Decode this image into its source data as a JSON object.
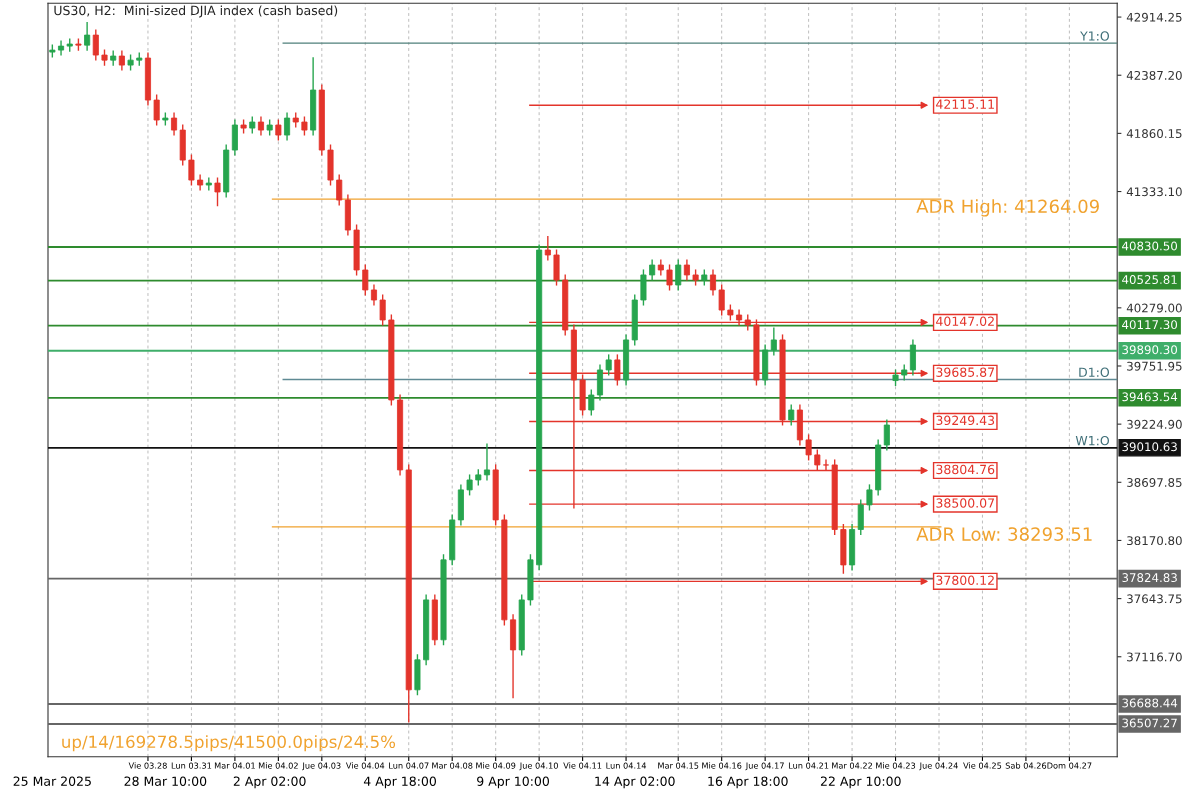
{
  "chart_data": {
    "type": "candlestick",
    "title": "US30, H2:  Mini-sized DJIA index (cash based)",
    "categories": [
      "25 Mar 2025",
      null,
      null,
      null,
      null,
      null,
      null,
      null,
      null,
      null,
      null,
      "Vie 03.28",
      null,
      "28 Mar 10:00",
      null,
      null,
      "Lun 03.31",
      null,
      null,
      null,
      null,
      "Mar 04.01",
      null,
      null,
      null,
      "2 Apr 02:00",
      "Mie 04.02",
      null,
      null,
      null,
      null,
      "Jue 04.03",
      null,
      null,
      null,
      null,
      "Vie 04.04",
      null,
      null,
      null,
      "4 Apr 18:00",
      "Lun 04.07",
      null,
      null,
      null,
      null,
      "Mar 04.08",
      null,
      null,
      null,
      null,
      "Mie 04.09",
      null,
      "9 Apr 10:00",
      null,
      null,
      "Jue 04.10",
      null,
      null,
      null,
      null,
      "Vie 04.11",
      null,
      null,
      null,
      null,
      "Lun 04.14",
      "14 Apr 02:00",
      null,
      null,
      null,
      null,
      "Mar 04.15",
      null,
      null,
      null,
      null,
      "Mie 04.16",
      null,
      null,
      "16 Apr 18:00",
      null,
      "Jue 04.17",
      null,
      null,
      null,
      null,
      "Lun 04.21",
      null,
      null,
      null,
      null,
      "Mar 04.22",
      "22 Apr 10:00",
      null,
      null,
      null,
      "Mie 04.23",
      null,
      null,
      null,
      null,
      "Jue 04.24",
      null,
      null,
      null,
      null,
      "Vie 04.25",
      null,
      null,
      null,
      null,
      "Sab 04.26",
      null,
      null,
      null,
      null,
      "Dom 04.27",
      null,
      null,
      null,
      null,
      null
    ],
    "ohlc": [
      [
        42597,
        42665,
        42547,
        42615
      ],
      [
        42615,
        42701,
        42565,
        42651
      ],
      [
        42651,
        42720,
        42601,
        42670
      ],
      [
        42670,
        42720,
        42610,
        42660
      ],
      [
        42660,
        42870,
        42610,
        42751
      ],
      [
        42751,
        42801,
        42520,
        42570
      ],
      [
        42570,
        42620,
        42474,
        42524
      ],
      [
        42524,
        42611,
        42474,
        42561
      ],
      [
        42561,
        42611,
        42429,
        42479
      ],
      [
        42479,
        42574,
        42429,
        42524
      ],
      [
        42524,
        42593,
        42474,
        42543
      ],
      [
        42543,
        42593,
        42112,
        42162
      ],
      [
        42162,
        42212,
        41931,
        41981
      ],
      [
        41981,
        42049,
        41931,
        41999
      ],
      [
        41999,
        42049,
        41840,
        41890
      ],
      [
        41890,
        41940,
        41568,
        41618
      ],
      [
        41618,
        41668,
        41387,
        41437
      ],
      [
        41437,
        41487,
        41342,
        41392
      ],
      [
        41392,
        41460,
        41342,
        41410
      ],
      [
        41410,
        41460,
        41200,
        41329
      ],
      [
        41329,
        41759,
        41279,
        41709
      ],
      [
        41709,
        41986,
        41659,
        41936
      ],
      [
        41936,
        41986,
        41858,
        41908
      ],
      [
        41908,
        42013,
        41858,
        41963
      ],
      [
        41963,
        42013,
        41840,
        41890
      ],
      [
        41890,
        41986,
        41840,
        41936
      ],
      [
        41936,
        41986,
        41795,
        41845
      ],
      [
        41845,
        42049,
        41795,
        41999
      ],
      [
        41999,
        42049,
        41913,
        41963
      ],
      [
        41963,
        42013,
        41840,
        41890
      ],
      [
        41890,
        42550,
        41840,
        42253
      ],
      [
        42253,
        42303,
        41659,
        41709
      ],
      [
        41709,
        41759,
        41387,
        41437
      ],
      [
        41437,
        41487,
        41206,
        41256
      ],
      [
        41256,
        41306,
        40934,
        40984
      ],
      [
        40984,
        41034,
        40572,
        40622
      ],
      [
        40622,
        40672,
        40391,
        40441
      ],
      [
        40441,
        40491,
        40300,
        40350
      ],
      [
        40350,
        40400,
        40119,
        40169
      ],
      [
        40169,
        40219,
        39394,
        39444
      ],
      [
        39444,
        39494,
        38760,
        38810
      ],
      [
        38810,
        38860,
        36520,
        36817
      ],
      [
        36817,
        37139,
        36767,
        37089
      ],
      [
        37089,
        37682,
        37039,
        37632
      ],
      [
        37632,
        37682,
        37220,
        37270
      ],
      [
        37270,
        38045,
        37220,
        37995
      ],
      [
        37995,
        38407,
        37945,
        38357
      ],
      [
        38357,
        38679,
        38307,
        38629
      ],
      [
        38629,
        38769,
        38579,
        38719
      ],
      [
        38719,
        38815,
        38669,
        38765
      ],
      [
        38765,
        39050,
        38715,
        38810
      ],
      [
        38810,
        38860,
        38307,
        38357
      ],
      [
        38357,
        38407,
        37401,
        37451
      ],
      [
        37451,
        37501,
        36740,
        37179
      ],
      [
        37179,
        37682,
        37129,
        37632
      ],
      [
        37632,
        38045,
        37582,
        37995
      ],
      [
        37950,
        40853,
        37900,
        40803
      ],
      [
        40803,
        40930,
        40708,
        40758
      ],
      [
        40758,
        40808,
        40481,
        40531
      ],
      [
        40531,
        40581,
        40028,
        40078
      ],
      [
        40078,
        40128,
        38460,
        39625
      ],
      [
        39625,
        39675,
        39303,
        39353
      ],
      [
        39353,
        39539,
        39303,
        39489
      ],
      [
        39489,
        39766,
        39439,
        39716
      ],
      [
        39716,
        39857,
        39666,
        39807
      ],
      [
        39807,
        39857,
        39575,
        39625
      ],
      [
        39625,
        40038,
        39575,
        39988
      ],
      [
        39988,
        40400,
        39938,
        40350
      ],
      [
        40350,
        40627,
        40300,
        40577
      ],
      [
        40577,
        40717,
        40527,
        40667
      ],
      [
        40667,
        40717,
        40572,
        40622
      ],
      [
        40622,
        40672,
        40436,
        40486
      ],
      [
        40486,
        40717,
        40436,
        40667
      ],
      [
        40667,
        40717,
        40527,
        40577
      ],
      [
        40577,
        40627,
        40481,
        40531
      ],
      [
        40531,
        40627,
        40481,
        40577
      ],
      [
        40577,
        40627,
        40391,
        40441
      ],
      [
        40441,
        40491,
        40209,
        40259
      ],
      [
        40259,
        40309,
        40164,
        40214
      ],
      [
        40214,
        40264,
        40119,
        40169
      ],
      [
        40169,
        40219,
        40074,
        40124
      ],
      [
        40124,
        40174,
        39575,
        39625
      ],
      [
        39625,
        39947,
        39575,
        39897
      ],
      [
        39897,
        40100,
        39847,
        39988
      ],
      [
        39988,
        40038,
        39213,
        39263
      ],
      [
        39263,
        39403,
        39213,
        39353
      ],
      [
        39353,
        39403,
        39032,
        39082
      ],
      [
        39082,
        39132,
        38896,
        38946
      ],
      [
        38946,
        38996,
        38805,
        38855
      ],
      [
        38855,
        38905,
        38805,
        38855
      ],
      [
        38855,
        38905,
        38220,
        38270
      ],
      [
        38270,
        38320,
        37870,
        37949
      ],
      [
        37949,
        38320,
        37899,
        38270
      ],
      [
        38270,
        38543,
        38220,
        38493
      ],
      [
        38493,
        38679,
        38443,
        38629
      ],
      [
        38629,
        39086,
        38579,
        39036
      ],
      [
        39036,
        39267,
        38986,
        39217
      ],
      [
        39620,
        39720,
        39570,
        39670
      ],
      [
        39670,
        39766,
        39620,
        39716
      ],
      [
        39716,
        39992,
        39666,
        39942
      ],
      null,
      null,
      null,
      null,
      null,
      null,
      null,
      null,
      null,
      null,
      null,
      null,
      null,
      null,
      null,
      null,
      null,
      null,
      null,
      null,
      null,
      null,
      null
    ],
    "colors": [
      "#26a54e",
      "#26a54e",
      "#26a54e",
      "#e3342b",
      "#26a54e",
      "#e3342b",
      "#e3342b",
      "#26a54e",
      "#e3342b",
      "#26a54e",
      "#26a54e",
      "#e3342b",
      "#e3342b",
      "#26a54e",
      "#e3342b",
      "#e3342b",
      "#e3342b",
      "#e3342b",
      "#26a54e",
      "#e3342b",
      "#26a54e",
      "#26a54e",
      "#e3342b",
      "#26a54e",
      "#e3342b",
      "#26a54e",
      "#e3342b",
      "#26a54e",
      "#e3342b",
      "#e3342b",
      "#26a54e",
      "#e3342b",
      "#e3342b",
      "#e3342b",
      "#e3342b",
      "#e3342b",
      "#e3342b",
      "#e3342b",
      "#e3342b",
      "#e3342b",
      "#e3342b",
      "#e3342b",
      "#26a54e",
      "#26a54e",
      "#e3342b",
      "#26a54e",
      "#26a54e",
      "#26a54e",
      "#26a54e",
      "#26a54e",
      "#26a54e",
      "#e3342b",
      "#e3342b",
      "#e3342b",
      "#26a54e",
      "#26a54e",
      "#26a54e",
      "#e3342b",
      "#e3342b",
      "#e3342b",
      "#e3342b",
      "#e3342b",
      "#26a54e",
      "#26a54e",
      "#26a54e",
      "#e3342b",
      "#26a54e",
      "#26a54e",
      "#26a54e",
      "#26a54e",
      "#e3342b",
      "#e3342b",
      "#26a54e",
      "#e3342b",
      "#e3342b",
      "#26a54e",
      "#e3342b",
      "#e3342b",
      "#e3342b",
      "#e3342b",
      "#e3342b",
      "#e3342b",
      "#26a54e",
      "#26a54e",
      "#e3342b",
      "#26a54e",
      "#e3342b",
      "#e3342b",
      "#e3342b",
      "#e3342b",
      "#e3342b",
      "#e3342b",
      "#26a54e",
      "#26a54e",
      "#26a54e",
      "#26a54e",
      "#26a54e",
      "#26a54e",
      "#26a54e",
      "#26a54e",
      null,
      null,
      null,
      null,
      null,
      null,
      null,
      null,
      null,
      null,
      null,
      null,
      null,
      null,
      null,
      null,
      null,
      null,
      null,
      null,
      null,
      null,
      null
    ],
    "ylim": [
      36210,
      43040
    ],
    "yticks": [
      42914.25,
      {
        "value": 42387.2,
        "label": "42387.20"
      },
      41860.15,
      {
        "value": 41333.1,
        "label": "41333.10"
      },
      {
        "value": 40279,
        "label": "40279.00"
      },
      39751.95,
      {
        "value": 39224.9,
        "label": "39224.90"
      },
      38697.85,
      {
        "value": 38170.8,
        "label": "38170.80"
      },
      37643.75,
      {
        "value": 37116.7,
        "label": "37116.70"
      }
    ],
    "grid": "x",
    "ref_lines": [
      {
        "axis": "y",
        "value": 42678,
        "color": "#4e7f7a"
      },
      {
        "axis": "y",
        "value": 42115.11,
        "label": "42115.11",
        "color": "#e3342b"
      },
      {
        "axis": "y",
        "value": 41264.09,
        "label": "ADR High: 41264.09",
        "color": "#f0a22e"
      },
      {
        "axis": "y",
        "value": 40830.5,
        "label": "40830.50",
        "color": "#2e8b2e"
      },
      {
        "axis": "y",
        "value": 40525.81,
        "label": "40525.81",
        "color": "#2e8b2e"
      },
      {
        "axis": "y",
        "value": 40147.02,
        "label": "40147.02",
        "color": "#e3342b"
      },
      {
        "axis": "y",
        "value": 40117.3,
        "label": "40117.30",
        "color": "#2e8b2e"
      },
      {
        "axis": "y",
        "value": 39890.3,
        "label": "39890.30",
        "color": "#3fae6a"
      },
      {
        "axis": "y",
        "value": 39685.87,
        "label": "39685.87",
        "color": "#e3342b"
      },
      {
        "axis": "y",
        "value": 39630,
        "color": "#5f8a94"
      },
      {
        "axis": "y",
        "value": 39463.54,
        "label": "39463.54",
        "color": "#2e8b2e"
      },
      {
        "axis": "y",
        "value": 39249.43,
        "label": "39249.43",
        "color": "#e3342b"
      },
      {
        "axis": "y",
        "value": 39010.63,
        "label": "39010.63",
        "color": "#111111"
      },
      {
        "axis": "y",
        "value": 38804.76,
        "label": "38804.76",
        "color": "#e3342b"
      },
      {
        "axis": "y",
        "value": 38500.07,
        "label": "38500.07",
        "color": "#e3342b"
      },
      {
        "axis": "y",
        "value": 38293.51,
        "label": "ADR Low: 38293.51",
        "color": "#f0a22e"
      },
      {
        "axis": "y",
        "value": 37824.83,
        "label": "37824.83",
        "color": "#666666"
      },
      {
        "axis": "y",
        "value": 37800.12,
        "label": "37800.12",
        "color": "#e3342b"
      },
      {
        "axis": "y",
        "value": 36688.44,
        "label": "36688.44",
        "color": "#666666"
      },
      {
        "axis": "y",
        "value": 36507.27,
        "label": "36507.27",
        "color": "#666666"
      }
    ],
    "annotations": [
      {
        "text": "Y1:O",
        "y": 42678
      },
      {
        "text": "D1:O",
        "y": 39630
      },
      {
        "text": "W1:O",
        "y": 39010.63
      },
      "up/14/169278.5pips/41500.0pips/24.5%"
    ]
  }
}
